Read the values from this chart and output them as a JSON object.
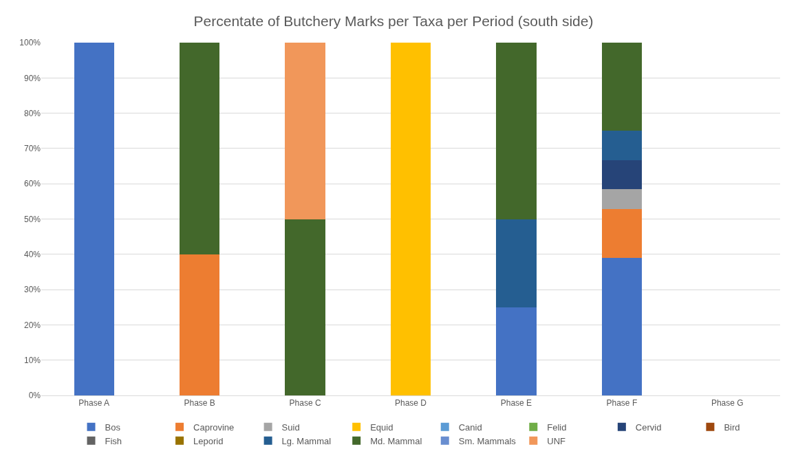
{
  "chart_data": {
    "type": "bar",
    "title": "Percentate of Butchery Marks per Taxa per Period (south side)",
    "categories": [
      "Phase A",
      "Phase B",
      "Phase C",
      "Phase D",
      "Phase E",
      "Phase F",
      "Phase G"
    ],
    "stacked": true,
    "ylim": [
      0,
      100
    ],
    "yticks": [
      {
        "value": 0,
        "label": "0%"
      },
      {
        "value": 10,
        "label": "10%"
      },
      {
        "value": 20,
        "label": "20%"
      },
      {
        "value": 30,
        "label": "30%"
      },
      {
        "value": 40,
        "label": "40%"
      },
      {
        "value": 50,
        "label": "50%"
      },
      {
        "value": 60,
        "label": "60%"
      },
      {
        "value": 70,
        "label": "70%"
      },
      {
        "value": 80,
        "label": "80%"
      },
      {
        "value": 90,
        "label": "90%"
      },
      {
        "value": 100,
        "label": "100%"
      }
    ],
    "grid": "y",
    "legend": "bottom",
    "series": [
      {
        "name": "Bos",
        "color": "#4472c4",
        "values": [
          100,
          null,
          null,
          null,
          25,
          38.9,
          null
        ]
      },
      {
        "name": "Caprovine",
        "color": "#ed7d31",
        "values": [
          null,
          40,
          null,
          null,
          null,
          13.9,
          null
        ]
      },
      {
        "name": "Suid",
        "color": "#a5a5a5",
        "values": [
          null,
          null,
          null,
          null,
          null,
          5.6,
          null
        ]
      },
      {
        "name": "Equid",
        "color": "#ffc000",
        "values": [
          null,
          null,
          null,
          100,
          null,
          null,
          null
        ]
      },
      {
        "name": "Canid",
        "color": "#5b9bd5",
        "values": [
          null,
          null,
          null,
          null,
          null,
          null,
          null
        ]
      },
      {
        "name": "Felid",
        "color": "#70ad47",
        "values": [
          null,
          null,
          null,
          null,
          null,
          null,
          null
        ]
      },
      {
        "name": "Cervid",
        "color": "#264478",
        "values": [
          null,
          null,
          null,
          null,
          null,
          8.3,
          null
        ]
      },
      {
        "name": "Bird",
        "color": "#9e480e",
        "values": [
          null,
          null,
          null,
          null,
          null,
          null,
          null
        ]
      },
      {
        "name": "Fish",
        "color": "#636363",
        "values": [
          null,
          null,
          null,
          null,
          null,
          null,
          null
        ]
      },
      {
        "name": "Leporid",
        "color": "#997300",
        "values": [
          null,
          null,
          null,
          null,
          null,
          null,
          null
        ]
      },
      {
        "name": "Lg. Mammal",
        "color": "#255e91",
        "values": [
          null,
          null,
          null,
          null,
          25,
          8.3,
          null
        ]
      },
      {
        "name": "Md. Mammal",
        "color": "#43682b",
        "values": [
          null,
          60,
          50,
          null,
          50,
          25,
          null
        ]
      },
      {
        "name": "Sm. Mammals",
        "color": "#698ed0",
        "values": [
          null,
          null,
          null,
          null,
          null,
          null,
          null
        ]
      },
      {
        "name": "UNF",
        "color": "#f1975a",
        "values": [
          null,
          null,
          50,
          null,
          null,
          null,
          null
        ]
      }
    ]
  }
}
